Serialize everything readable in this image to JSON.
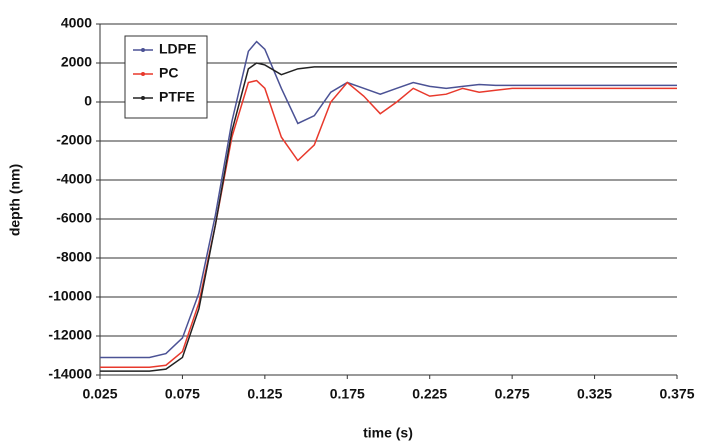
{
  "chart_data": {
    "type": "line",
    "x_label": "time (s)",
    "y_label": "depth (nm)",
    "x": [
      0.025,
      0.035,
      0.045,
      0.055,
      0.065,
      0.075,
      0.085,
      0.095,
      0.105,
      0.115,
      0.12,
      0.125,
      0.135,
      0.145,
      0.155,
      0.165,
      0.175,
      0.185,
      0.195,
      0.205,
      0.215,
      0.225,
      0.235,
      0.245,
      0.255,
      0.265,
      0.275,
      0.295,
      0.315,
      0.335,
      0.355,
      0.375
    ],
    "series": [
      {
        "name": "LDPE",
        "color": "#4b5295",
        "values": [
          -13100,
          -13100,
          -13100,
          -13100,
          -12900,
          -12100,
          -9800,
          -5800,
          -1000,
          2600,
          3100,
          2700,
          700,
          -1100,
          -700,
          500,
          1000,
          700,
          400,
          700,
          1000,
          800,
          700,
          800,
          900,
          850,
          850,
          850,
          850,
          850,
          850,
          850
        ]
      },
      {
        "name": "PC",
        "color": "#e8392c",
        "values": [
          -13600,
          -13600,
          -13600,
          -13600,
          -13500,
          -12800,
          -10300,
          -6300,
          -1800,
          1000,
          1100,
          700,
          -1800,
          -3000,
          -2200,
          0,
          1000,
          300,
          -600,
          0,
          700,
          300,
          400,
          700,
          500,
          600,
          700,
          700,
          700,
          700,
          700,
          700
        ]
      },
      {
        "name": "PTFE",
        "color": "#222222",
        "values": [
          -13800,
          -13800,
          -13800,
          -13800,
          -13700,
          -13100,
          -10600,
          -6300,
          -1500,
          1700,
          2000,
          1900,
          1400,
          1700,
          1800,
          1800,
          1800,
          1800,
          1800,
          1800,
          1800,
          1800,
          1800,
          1800,
          1800,
          1800,
          1800,
          1800,
          1800,
          1800,
          1800,
          1800
        ]
      }
    ],
    "xlim": [
      0.025,
      0.375
    ],
    "xticks": [
      0.025,
      0.075,
      0.125,
      0.175,
      0.225,
      0.275,
      0.325,
      0.375
    ],
    "ylim": [
      -14000,
      4000
    ],
    "yticks": [
      -14000,
      -12000,
      -10000,
      -8000,
      -6000,
      -4000,
      -2000,
      0,
      2000,
      4000
    ],
    "grid": true,
    "legend": "upper left"
  }
}
